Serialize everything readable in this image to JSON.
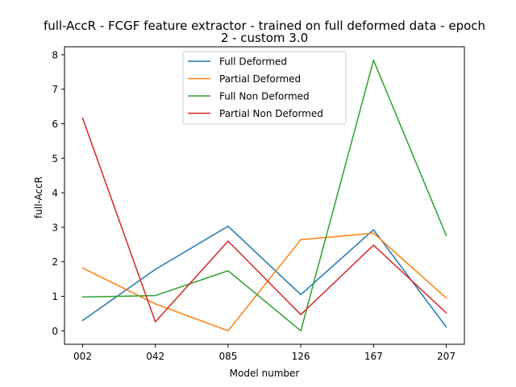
{
  "chart_data": {
    "type": "line",
    "title_lines": [
      "full-AccR - FCGF feature extractor -  trained on full deformed data -  epoch",
      "2 - custom 3.0"
    ],
    "xlabel": "Model number",
    "ylabel": "full-AccR",
    "categories": [
      "002",
      "042",
      "085",
      "126",
      "167",
      "207"
    ],
    "ylim": [
      -0.39,
      8.23
    ],
    "yticks": [
      0,
      1,
      2,
      3,
      4,
      5,
      6,
      7,
      8
    ],
    "grid": false,
    "legend_position": "upper center",
    "series": [
      {
        "name": "Full Deformed",
        "color": "#1f77b4",
        "values": [
          0.3,
          1.78,
          3.03,
          1.05,
          2.93,
          0.11
        ]
      },
      {
        "name": "Partial Deformed",
        "color": "#ff7f0e",
        "values": [
          1.82,
          0.78,
          0.0,
          2.64,
          2.83,
          0.95
        ]
      },
      {
        "name": "Full Non Deformed",
        "color": "#2ca02c",
        "values": [
          0.98,
          1.02,
          1.74,
          0.0,
          7.84,
          2.76
        ]
      },
      {
        "name": "Partial Non Deformed",
        "color": "#d62728",
        "values": [
          6.16,
          0.26,
          2.6,
          0.47,
          2.48,
          0.52
        ]
      }
    ]
  }
}
